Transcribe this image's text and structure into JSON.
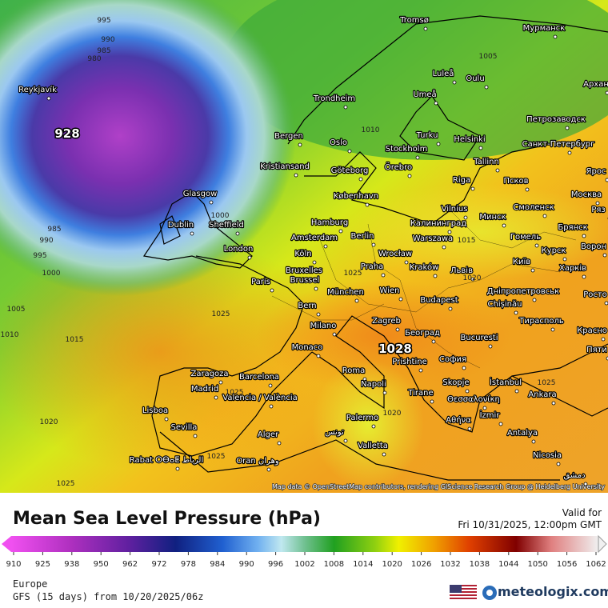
{
  "title": "Mean Sea Level Pressure (hPa)",
  "valid": {
    "label": "Valid for",
    "time": "Fri 10/31/2025, 12:00pm GMT"
  },
  "region": "Europe",
  "model": "GFS (15 days) from 10/20/2025/06z",
  "attribution": "Map data © OpenStreetMap contributors, rendering GIScience Research Group @ Heidelberg University",
  "brand": "meteologix.com",
  "colorbar": {
    "ticks": [
      910,
      925,
      938,
      950,
      962,
      972,
      978,
      984,
      990,
      996,
      1002,
      1008,
      1014,
      1020,
      1026,
      1032,
      1038,
      1044,
      1050,
      1056,
      1062
    ]
  },
  "map": {
    "cities": [
      "Tromsø",
      "Мурманск",
      "Luleå",
      "Oulu",
      "Umeå",
      "Trondheim",
      "Архан",
      "Петрозаводск",
      "Bergen",
      "Oslo",
      "Turku",
      "Helsinki",
      "Санкт-Петербург",
      "Stockholm",
      "Kristiansand",
      "Göteborg",
      "Örebro",
      "Tallinn",
      "Ярос",
      "Riga",
      "Псков",
      "Glasgow",
      "København",
      "Москва",
      "Vilnius",
      "Смоленск",
      "Минск",
      "Ряз",
      "Dublin",
      "Sheffield",
      "Hamburg",
      "Калининград",
      "Брянск",
      "Amsterdam",
      "Berlin",
      "Warszawa",
      "Гомель",
      "Ворон",
      "London",
      "Köln",
      "Wrocław",
      "Курск",
      "Київ",
      "Bruxelles",
      "Brussel",
      "Praha",
      "Kraków",
      "Львів",
      "Харків",
      "Paris",
      "München",
      "Wien",
      "Дніпропетровськ",
      "Росто",
      "Budapest",
      "Chișinău",
      "Bern",
      "Milano",
      "Zagreb",
      "Тирасполь",
      "Београд",
      "Красно",
      "Monaco",
      "Bucuresti",
      "Пяти",
      "София",
      "Prishtine",
      "Zaragoza",
      "Barcelona",
      "Roma",
      "İstanbul",
      "Madrid",
      "Napoli",
      "Skopje",
      "Tirane",
      "Ankara",
      "Valencia / València",
      "Θεσσαλονίκη",
      "Lisboa",
      "Palermo",
      "Αθήνα",
      "İzmir",
      "Sevilla",
      "Alger",
      "تونس",
      "Antalya",
      "Valletta",
      "Rabat ⵔⴱⴰⵟ الرباط",
      "Oran وهران",
      "Nicosia",
      "Reykjavík",
      "دمشق"
    ],
    "isobar_labels": [
      995,
      990,
      985,
      980,
      1000,
      995,
      990,
      985,
      1005,
      1010,
      1015,
      1020,
      1025,
      1025,
      1025,
      1025,
      1010,
      1005,
      1015,
      1020,
      1025,
      1020,
      1025,
      1000
    ],
    "centers": [
      928,
      1028
    ]
  }
}
